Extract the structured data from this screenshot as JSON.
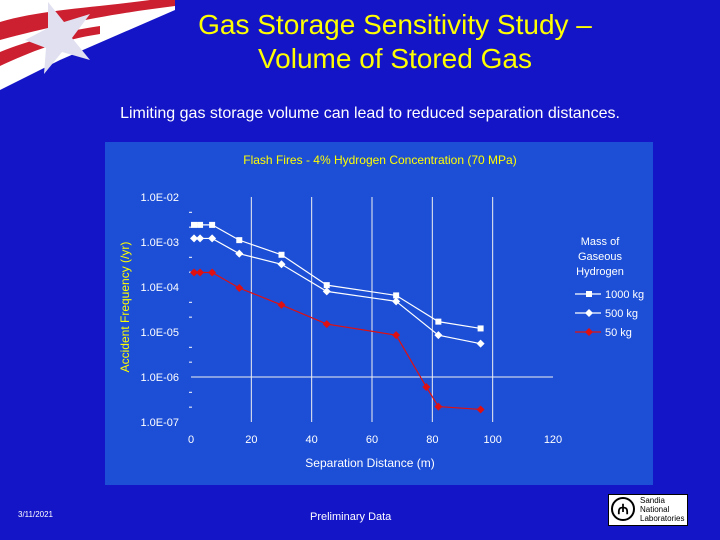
{
  "slide": {
    "title_line1": "Gas Storage Sensitivity Study –",
    "title_line2": "Volume of Stored Gas",
    "subtitle": "Limiting gas storage volume can lead to reduced separation distances.",
    "date": "3/11/2021",
    "footer_note": "Preliminary Data",
    "logo": {
      "line1": "Sandia",
      "line2": "National",
      "line3": "Laboratories"
    }
  },
  "colors": {
    "background": "#1515c8",
    "title": "#ffff00",
    "series_1000": "#ffffff",
    "series_500": "#ffffff",
    "series_50": "#e01010"
  },
  "chart_data": {
    "type": "line",
    "title": "Flash Fires - 4% Hydrogen Concentration (70 MPa)",
    "xlabel": "Separation Distance (m)",
    "ylabel": "Accident Frequency (/yr)",
    "yscale": "log",
    "xlim": [
      0,
      120
    ],
    "ylim": [
      1e-07,
      0.01
    ],
    "x_ticks": [
      "0",
      "20",
      "40",
      "60",
      "80",
      "100",
      "120"
    ],
    "y_ticks": [
      "1.0E-02",
      "1.0E-03",
      "1.0E-04",
      "1.0E-05",
      "1.0E-06",
      "1.0E-07"
    ],
    "legend_title": [
      "Mass of",
      "Gaseous",
      "Hydrogen"
    ],
    "series": [
      {
        "name": "1000 kg",
        "marker": "square",
        "color": "#ffffff",
        "x": [
          1,
          3,
          7,
          16,
          30,
          45,
          68,
          82,
          96
        ],
        "y": [
          0.0024,
          0.0024,
          0.0024,
          0.0011,
          0.00052,
          0.00011,
          6.5e-05,
          1.7e-05,
          1.2e-05
        ]
      },
      {
        "name": "500 kg",
        "marker": "diamond",
        "color": "#ffffff",
        "x": [
          1,
          3,
          7,
          16,
          30,
          45,
          68,
          82,
          96
        ],
        "y": [
          0.0012,
          0.0012,
          0.0012,
          0.00055,
          0.00032,
          8e-05,
          4.8e-05,
          8.5e-06,
          5.5e-06
        ]
      },
      {
        "name": "50 kg",
        "marker": "diamond",
        "color": "#e01010",
        "x": [
          1,
          3,
          7,
          16,
          30,
          45,
          68,
          78,
          82,
          96
        ],
        "y": [
          0.00021,
          0.00021,
          0.00021,
          9.5e-05,
          4e-05,
          1.5e-05,
          8.5e-06,
          6e-07,
          2.2e-07,
          1.9e-07
        ]
      }
    ]
  }
}
